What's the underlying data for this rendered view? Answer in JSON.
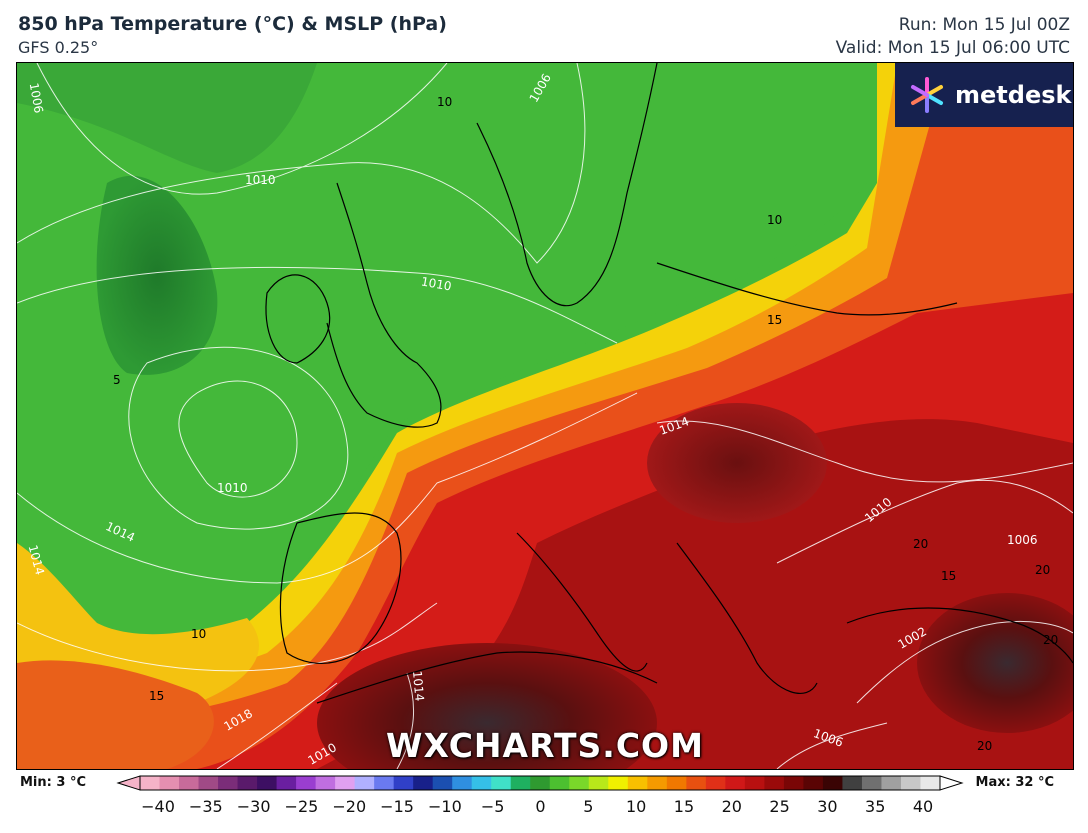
{
  "header": {
    "title": "850 hPa Temperature (°C) & MSLP (hPa)",
    "model": "GFS 0.25°",
    "run": "Run: Mon 15 Jul 00Z",
    "valid": "Valid: Mon 15 Jul 06:00 UTC"
  },
  "logo": {
    "name": "metdesk"
  },
  "watermark": "WXCHARTS.COM",
  "isobar_labels": [
    "1006",
    "1010",
    "1010",
    "1006",
    "1014",
    "1014",
    "1014",
    "1010",
    "1010",
    "1018",
    "1014",
    "1010",
    "1002",
    "1006",
    "1006"
  ],
  "temperature_labels": [
    "10",
    "10",
    "15",
    "5",
    "10",
    "15",
    "20",
    "20",
    "20",
    "15",
    "20"
  ],
  "colorbar": {
    "min_label": "Min: 3 °C",
    "max_label": "Max: 32 °C",
    "ticks": [
      "−40",
      "−35",
      "−30",
      "−25",
      "−20",
      "−15",
      "−10",
      "−5",
      "0",
      "5",
      "10",
      "15",
      "20",
      "25",
      "30",
      "35",
      "40"
    ],
    "colors": [
      "#f5b3c8",
      "#e58fb0",
      "#c86b9a",
      "#a04a86",
      "#7b2d79",
      "#5a1a6b",
      "#3d0f63",
      "#6a1fa0",
      "#9a3ed0",
      "#c06ee0",
      "#e0a0f0",
      "#b0b0ff",
      "#6a7af0",
      "#3040c8",
      "#18208a",
      "#1b4fb0",
      "#2f8fe0",
      "#35c0e8",
      "#40e0c8",
      "#1fb060",
      "#2f9a30",
      "#4cc030",
      "#7ad82a",
      "#b8e81a",
      "#f0f000",
      "#f8c000",
      "#f59a00",
      "#f07800",
      "#e85010",
      "#e03018",
      "#d01818",
      "#b81010",
      "#9a0a0a",
      "#7a0606",
      "#5a0404",
      "#3a0404",
      "#404040",
      "#707070",
      "#a0a0a0",
      "#c8c8c8",
      "#e8e8e8"
    ]
  }
}
